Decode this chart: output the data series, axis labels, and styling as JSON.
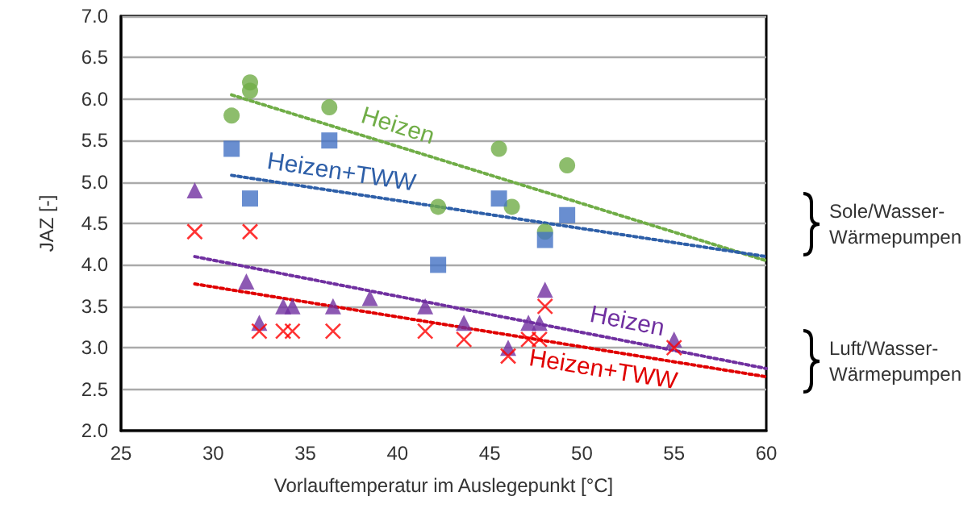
{
  "chart_data": {
    "type": "scatter",
    "xlabel": "Vorlauftemperatur im Auslegepunkt [°C]",
    "ylabel": "JAZ [-]",
    "xlim": [
      25,
      60
    ],
    "xticks": [
      25,
      30,
      35,
      40,
      45,
      50,
      55,
      60
    ],
    "ylim": [
      2,
      7
    ],
    "yticks": [
      {
        "value": 2,
        "label": "2.0"
      },
      2.5,
      {
        "value": 3,
        "label": "3.0"
      },
      3.5,
      {
        "value": 4,
        "label": "4.0"
      },
      4.5,
      {
        "value": 5,
        "label": "5.0"
      },
      5.5,
      {
        "value": 6,
        "label": "6.0"
      },
      6.5,
      {
        "value": 7,
        "label": "7.0"
      }
    ],
    "grid": "y",
    "legend": false,
    "series": [
      {
        "marker": "circle",
        "color": "#70ad47",
        "x": [
          31,
          32,
          32,
          36.3,
          42.2,
          45.5,
          46.2,
          48,
          49.2
        ],
        "values": [
          5.8,
          6.2,
          6.1,
          5.9,
          4.7,
          5.4,
          4.7,
          4.4,
          5.2
        ]
      },
      {
        "marker": "square",
        "color": "#4472c4",
        "x": [
          31,
          32,
          36.3,
          42.2,
          45.5,
          48,
          49.2
        ],
        "values": [
          5.4,
          4.8,
          5.5,
          4.0,
          4.8,
          4.3,
          4.6
        ]
      },
      {
        "marker": "triangle",
        "color": "#7030a0",
        "x": [
          29,
          31.8,
          32.5,
          33.8,
          34.3,
          36.5,
          38.5,
          41.5,
          43.6,
          46,
          47.1,
          47.7,
          48,
          55
        ],
        "values": [
          4.9,
          3.8,
          3.3,
          3.5,
          3.5,
          3.5,
          3.6,
          3.5,
          3.3,
          3.0,
          3.3,
          3.3,
          3.7,
          3.1
        ]
      },
      {
        "marker": "cross",
        "color": "#ff0000",
        "x": [
          29,
          32,
          32.5,
          33.8,
          34.3,
          36.5,
          41.5,
          43.6,
          46,
          47.1,
          47.7,
          48,
          55
        ],
        "values": [
          4.4,
          4.4,
          3.2,
          3.2,
          3.2,
          3.2,
          3.2,
          3.1,
          2.9,
          3.1,
          3.1,
          3.5,
          3.0
        ]
      },
      {
        "type": "line",
        "name": "Heizen",
        "marker": "none",
        "line_style": "dotted",
        "color": "#70ad47",
        "x": [
          31,
          60
        ],
        "values": [
          6.05,
          4.05
        ]
      },
      {
        "type": "line",
        "name": "Heizen+TWW",
        "marker": "none",
        "line_style": "dotted",
        "color": "#2e5fa8",
        "x": [
          31,
          60
        ],
        "values": [
          5.08,
          4.1
        ]
      },
      {
        "type": "line",
        "name": "Heizen",
        "marker": "none",
        "line_style": "dotted",
        "color": "#7030a0",
        "x": [
          29,
          60
        ],
        "values": [
          4.1,
          2.75
        ]
      },
      {
        "type": "line",
        "name": "Heizen+TWW",
        "marker": "none",
        "line_style": "dotted",
        "color": "#e00000",
        "x": [
          29,
          60
        ],
        "values": [
          3.77,
          2.65
        ]
      }
    ],
    "annotations": [
      "Sole/Wasser-\nWärmepumpen",
      "Luft/Wasser-\nWärmepumpen"
    ]
  }
}
